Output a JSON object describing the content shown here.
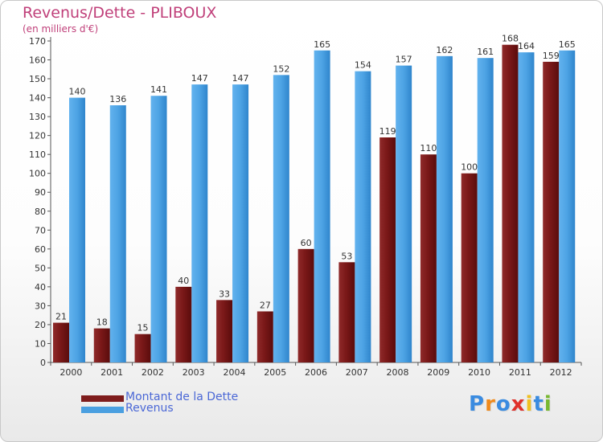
{
  "title": "Revenus/Dette - PLIBOUX",
  "subtitle": "(en milliers d'€)",
  "logo_text": "Proxiti",
  "colors": {
    "title": "#c0407a",
    "debt": "#7e1c1c",
    "revenue": "#4a9fe0",
    "legend_text": "#4a67d6",
    "logo": [
      "#3a8be0",
      "#f08a1c",
      "#3a8be0",
      "#e0302a",
      "#f0c020",
      "#3a8be0",
      "#78b830"
    ]
  },
  "chart_data": {
    "type": "bar",
    "title": "Revenus/Dette - PLIBOUX",
    "subtitle": "(en milliers d'€)",
    "xlabel": "",
    "ylabel": "",
    "ylim": [
      0,
      170
    ],
    "ytick_step": 10,
    "grid": false,
    "legend_position": "bottom-left",
    "categories": [
      "2000",
      "2001",
      "2002",
      "2003",
      "2004",
      "2005",
      "2006",
      "2007",
      "2008",
      "2009",
      "2010",
      "2011",
      "2012"
    ],
    "series": [
      {
        "name": "Montant de la Dette",
        "color": "#7e1c1c",
        "values": [
          21,
          18,
          15,
          40,
          33,
          27,
          60,
          53,
          119,
          110,
          100,
          168,
          159
        ]
      },
      {
        "name": "Revenus",
        "color": "#4a9fe0",
        "values": [
          140,
          136,
          141,
          147,
          147,
          152,
          165,
          154,
          157,
          162,
          161,
          164,
          165
        ]
      }
    ]
  }
}
